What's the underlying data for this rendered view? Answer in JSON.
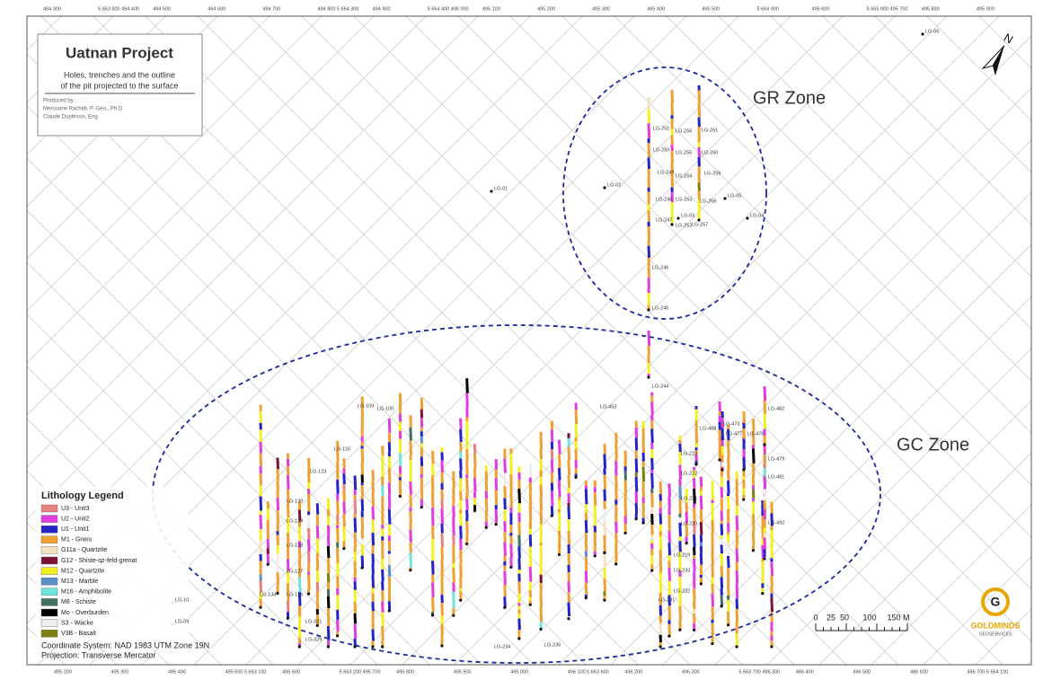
{
  "header": {
    "title": "Uatnan Project",
    "subtitle_lines": [
      "Holes, trenches and the outline",
      "of the pit projected to the surface"
    ],
    "produced_by": [
      "Produced by :",
      "Merouane Rachidi, P. Geo., Ph.D",
      "Claude Duplessis, Eng."
    ]
  },
  "zones": [
    "GR Zone",
    "GC Zone"
  ],
  "legend": {
    "title": "Lithology Legend",
    "items": [
      {
        "label": "U3 - Unit3",
        "color": "#e88080"
      },
      {
        "label": "U2 - Unit2",
        "color": "#e03ce0"
      },
      {
        "label": "U1 - Unit1",
        "color": "#2323c8"
      },
      {
        "label": "M1 - Gneis",
        "color": "#f0a030"
      },
      {
        "label": "G11a - Quartzite",
        "color": "#f3e3c0"
      },
      {
        "label": "G12 - Shiste-qz-feld-grenat",
        "color": "#7a1238"
      },
      {
        "label": "M12 - Quartzite",
        "color": "#f2f020"
      },
      {
        "label": "M13 - Marble",
        "color": "#5b8fc8"
      },
      {
        "label": "M16 - Amphibolite",
        "color": "#6ee6e0"
      },
      {
        "label": "M8 - Schiste",
        "color": "#3f7060"
      },
      {
        "label": "Mo - Overburden",
        "color": "#000000"
      },
      {
        "label": "S3 - Wacke",
        "color": "#eeeeee"
      },
      {
        "label": "V3B - Basalt",
        "color": "#808010"
      }
    ]
  },
  "footer": {
    "coordinate_system": "Coordinate System: NAD 1983 UTM Zone 19N",
    "projection": "Projection: Transverse Mercator"
  },
  "scale_bar": [
    "0",
    "25",
    "50",
    "100",
    "150 M"
  ],
  "logo": {
    "name": "GOLDMINDS",
    "sub": "GEOSERVICES"
  },
  "top_coords": [
    "494 300",
    "5 663 800 494 400",
    "494 500",
    "494 600",
    "494 700",
    "494 800 5 664 300",
    "494 900",
    "5 664 400 495 000",
    "495 100",
    "495 200",
    "495 300",
    "495 400",
    "495 500",
    "5 664 900",
    "495 600",
    "5 665 000 495 700",
    "495 800",
    "495 900"
  ],
  "bottom_coords": [
    "495 200",
    "495 300",
    "495 400",
    "495 500 5 663 100",
    "495 600",
    "5 663 200 495 700",
    "495 800",
    "495 900",
    "496 000",
    "496 100 5 663 600",
    "496 200",
    "496 300",
    "5 663 700 496 300",
    "496 400",
    "496 500",
    "496 600",
    "496 700 5 664 100"
  ],
  "holes": [
    "LG-251",
    "LG-250",
    "LG-249",
    "LG-248",
    "LG-247",
    "LG-246",
    "LG-245",
    "LG-256",
    "LG-255",
    "LG-254",
    "LG-253",
    "LG-252",
    "LG-261",
    "LG-260",
    "LG-259",
    "LG-258",
    "LG-257",
    "LG-01",
    "LG-02",
    "LG-03",
    "LG-04",
    "LG-05",
    "LG-06",
    "LG-10",
    "LG-09",
    "LG-244",
    "LG-109",
    "LG-100",
    "LG-116",
    "LG-123",
    "LG-130",
    "LG-129",
    "LG-128",
    "LG-127",
    "LG-126",
    "LG-134",
    "LG-321",
    "LG-329",
    "LG-473",
    "LG-468",
    "LG-477",
    "LG-478",
    "LG-479",
    "LG-481",
    "LG-492",
    "LG-482",
    "LG-220",
    "LG-221",
    "LG-222",
    "LG-223",
    "LG-219",
    "LG-233",
    "LG-232",
    "LG-231",
    "LG-453",
    "LG-234",
    "LG-236"
  ]
}
